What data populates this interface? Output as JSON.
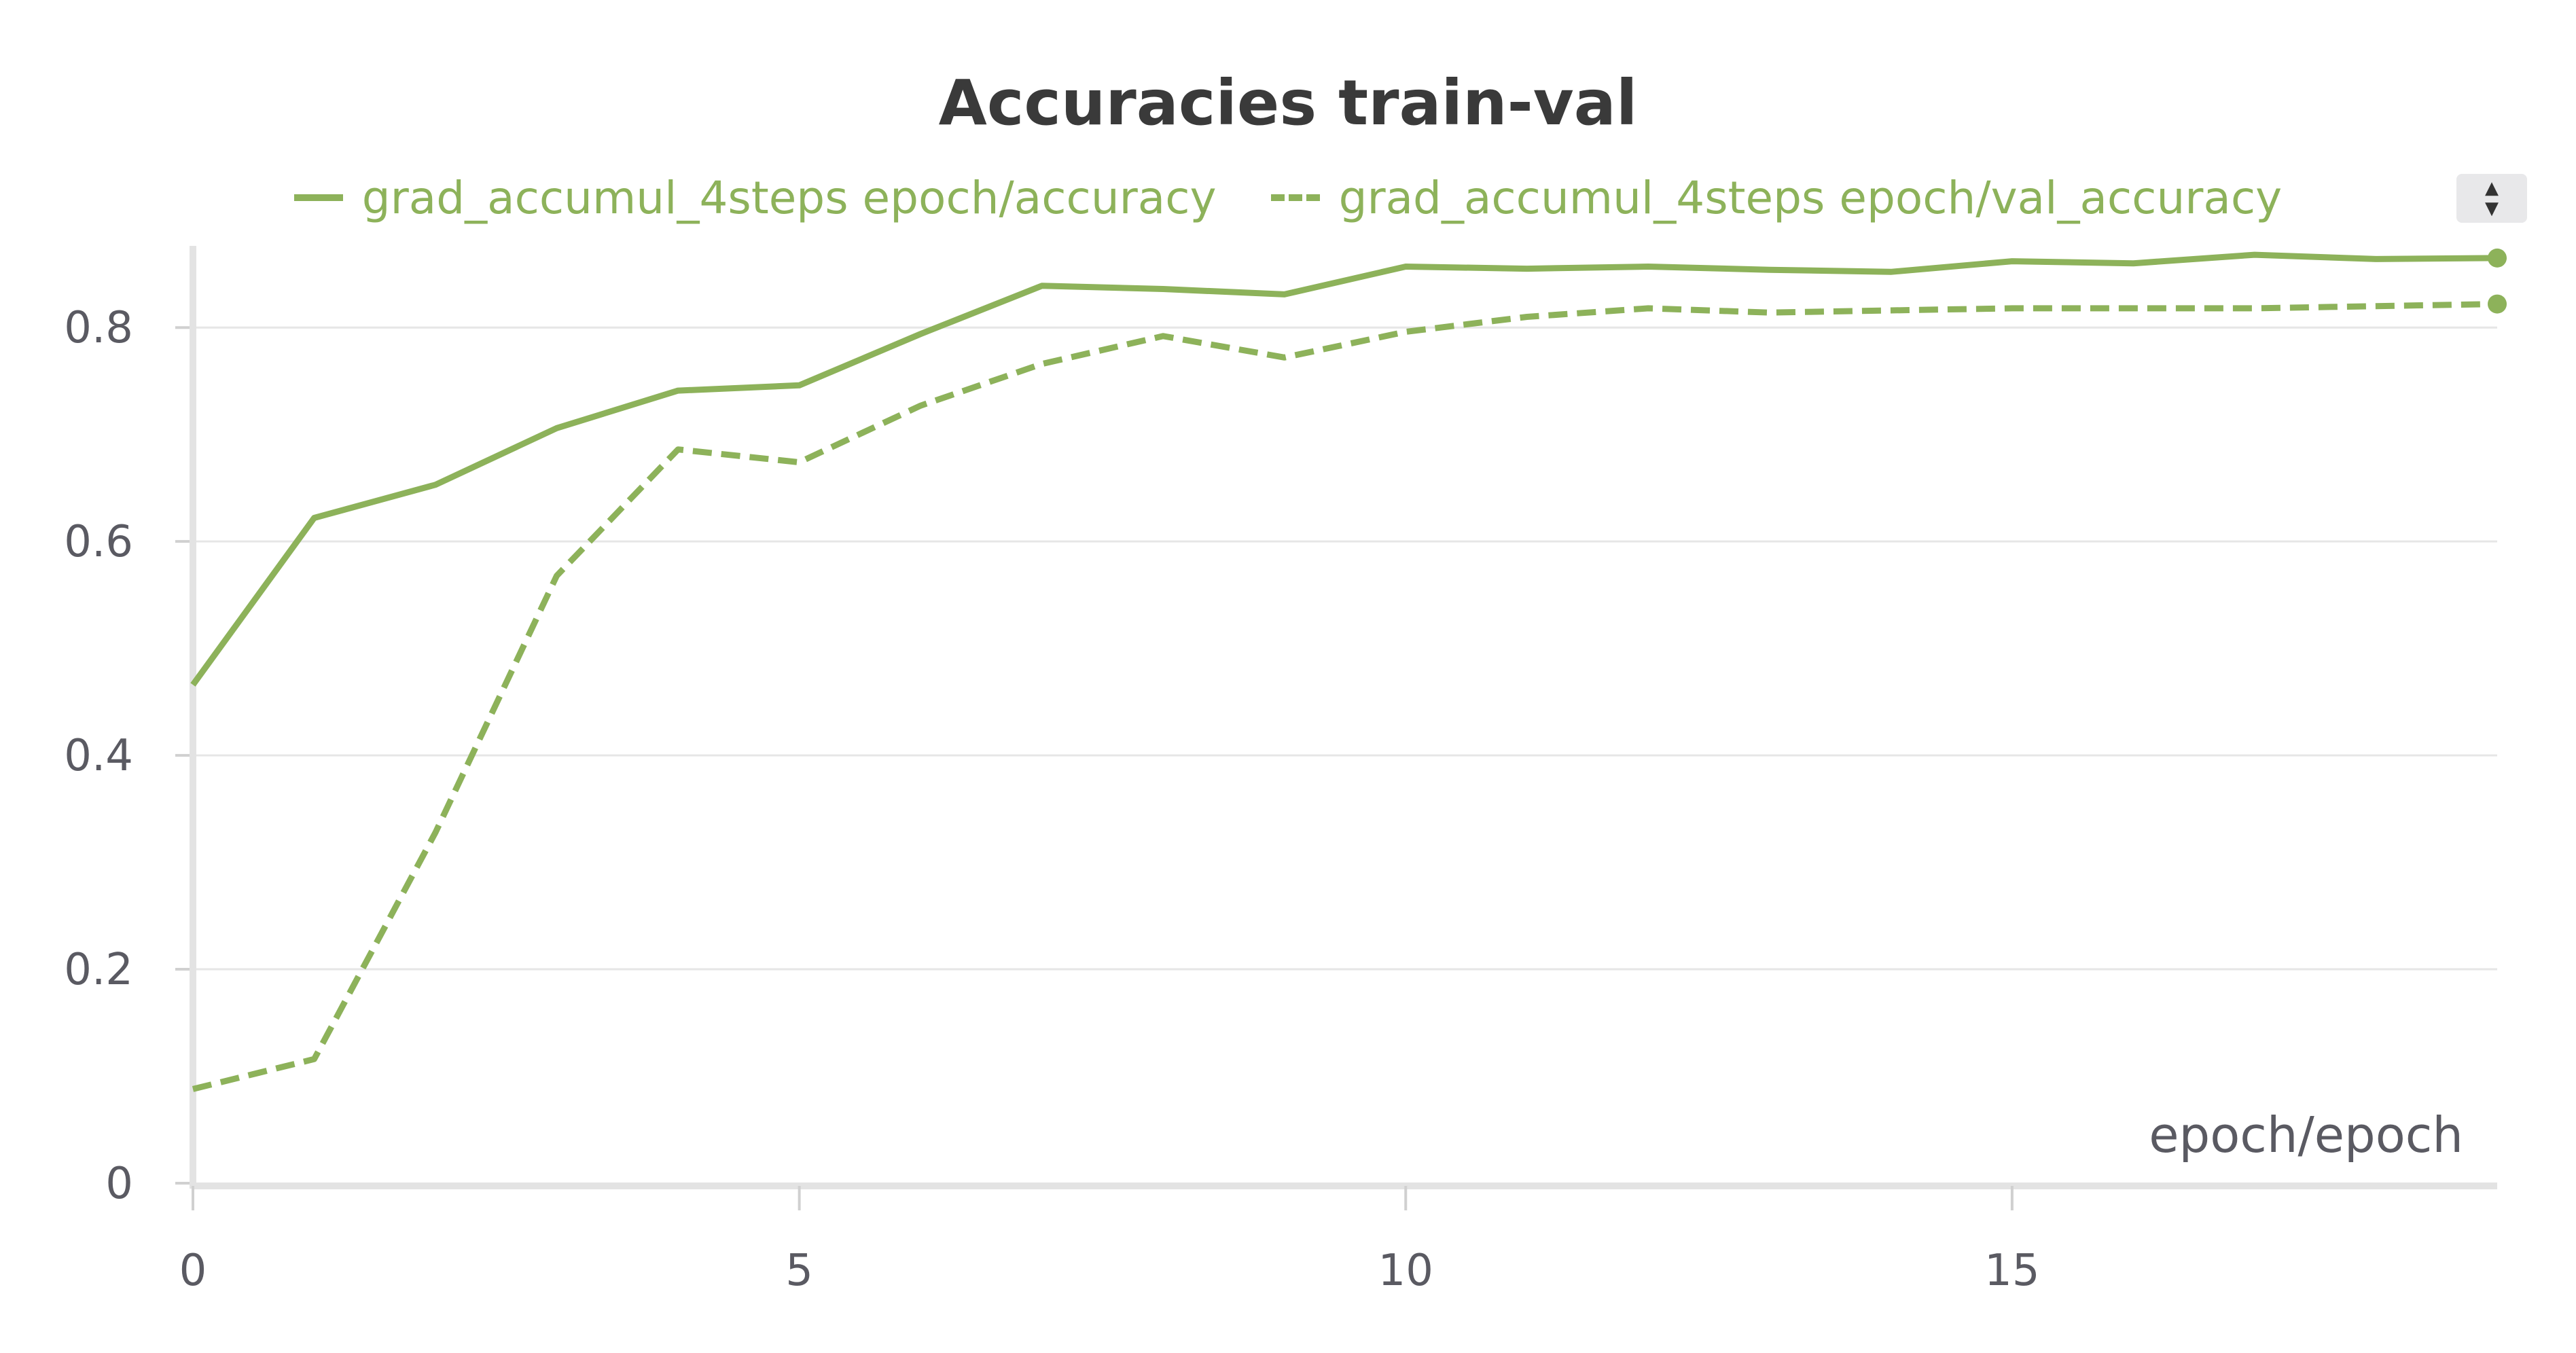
{
  "chart_data": {
    "type": "line",
    "title": "Accuracies train-val",
    "xlabel": "epoch/epoch",
    "ylabel": "",
    "xlim": [
      0,
      19
    ],
    "ylim": [
      0,
      0.87
    ],
    "x_ticks": [
      0,
      5,
      10,
      15
    ],
    "y_ticks": [
      0,
      0.2,
      0.4,
      0.6,
      0.8
    ],
    "grid": true,
    "legend_position": "top-center",
    "color": "#8db25a",
    "x": [
      0,
      1,
      2,
      3,
      4,
      5,
      6,
      7,
      8,
      9,
      10,
      11,
      12,
      13,
      14,
      15,
      16,
      17,
      18,
      19
    ],
    "series": [
      {
        "name": "grad_accumul_4steps epoch/accuracy",
        "style": "solid",
        "values": [
          0.466,
          0.622,
          0.653,
          0.706,
          0.741,
          0.746,
          0.794,
          0.839,
          0.836,
          0.831,
          0.857,
          0.855,
          0.857,
          0.854,
          0.852,
          0.862,
          0.86,
          0.868,
          0.864,
          0.865
        ]
      },
      {
        "name": "grad_accumul_4steps epoch/val_accuracy",
        "style": "dashed",
        "values": [
          0.088,
          0.116,
          0.328,
          0.568,
          0.686,
          0.674,
          0.727,
          0.766,
          0.792,
          0.772,
          0.796,
          0.81,
          0.818,
          0.814,
          0.816,
          0.818,
          0.818,
          0.818,
          0.82,
          0.822
        ]
      }
    ]
  },
  "controls": {
    "zoom_up_icon": "▲",
    "zoom_down_icon": "▼"
  }
}
